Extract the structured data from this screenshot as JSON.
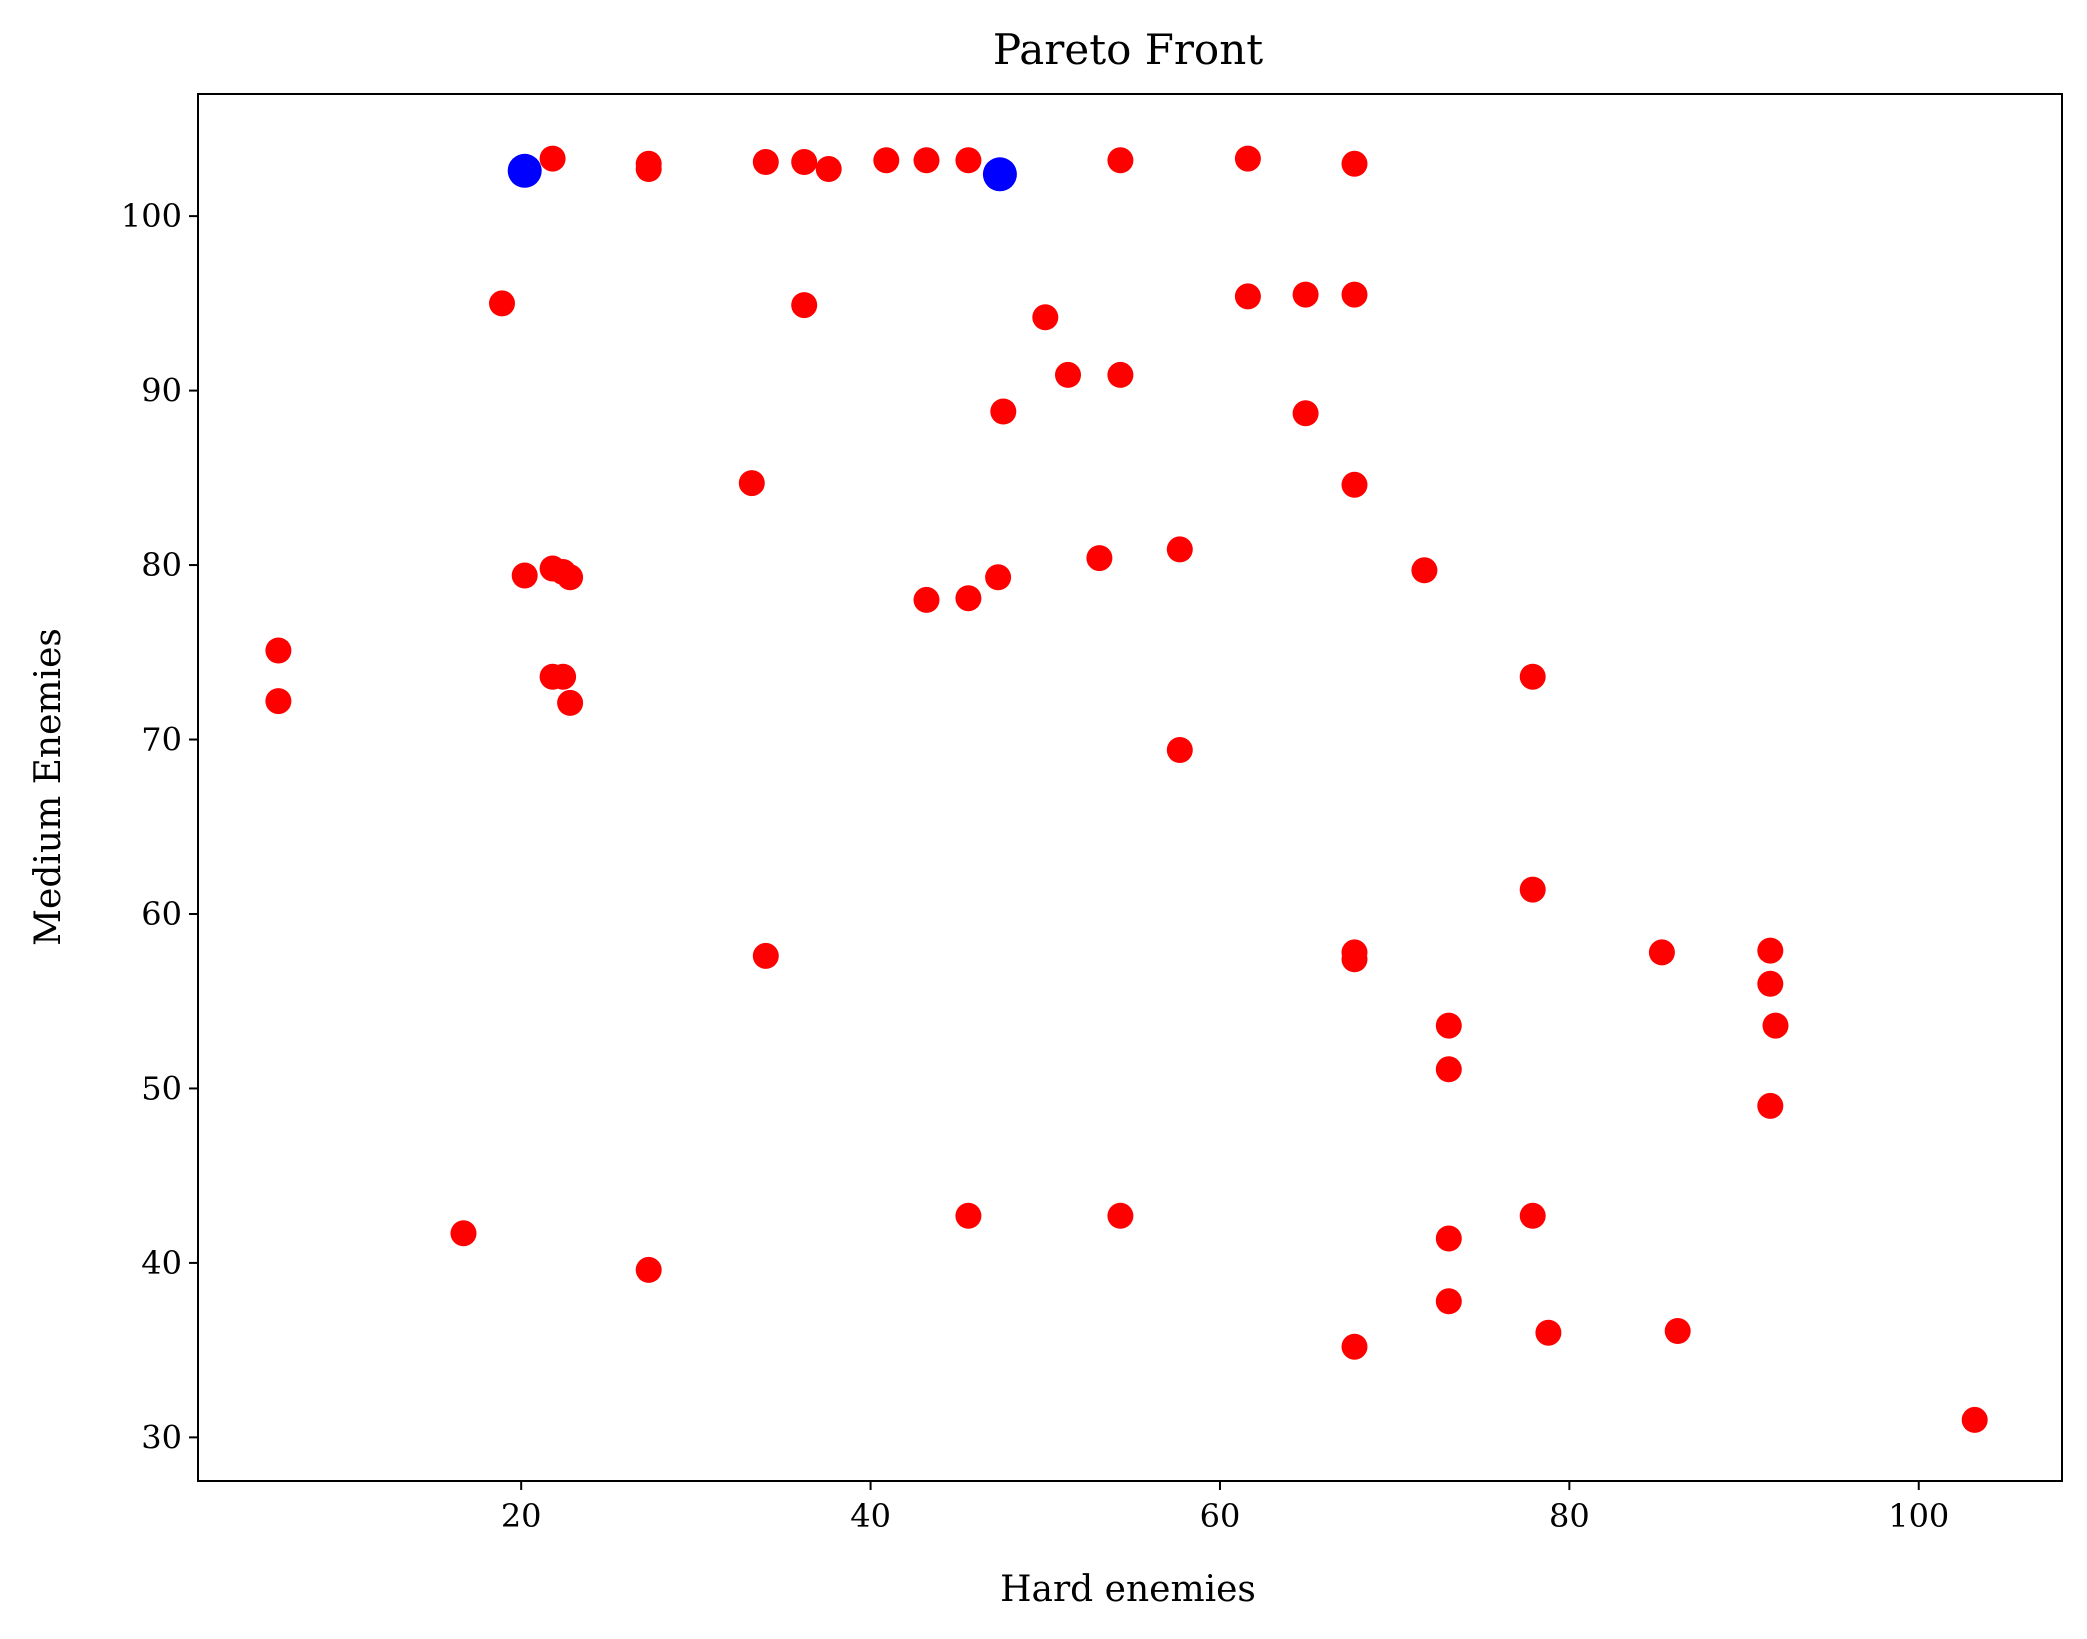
{
  "chart_data": {
    "type": "scatter",
    "title": "Pareto Front",
    "xlabel": "Hard enemies",
    "ylabel": "Medium Enemies",
    "xlim": [
      1.5,
      108.2
    ],
    "ylim": [
      27.5,
      107.0
    ],
    "xticks": [
      20,
      40,
      60,
      80,
      100
    ],
    "yticks": [
      30,
      40,
      50,
      60,
      70,
      80,
      90,
      100
    ],
    "grid": false,
    "colors": {
      "dominated": "#ff0000",
      "pareto": "#0000ff"
    },
    "series": [
      {
        "color": "#ff0000",
        "points": [
          [
            21.8,
            103.3
          ],
          [
            27.3,
            103.0
          ],
          [
            27.3,
            102.7
          ],
          [
            34.0,
            103.1
          ],
          [
            36.2,
            103.1
          ],
          [
            37.6,
            102.7
          ],
          [
            40.9,
            103.2
          ],
          [
            43.2,
            103.2
          ],
          [
            45.6,
            103.2
          ],
          [
            54.3,
            103.2
          ],
          [
            61.6,
            103.3
          ],
          [
            67.7,
            103.0
          ],
          [
            18.9,
            95.0
          ],
          [
            36.2,
            94.9
          ],
          [
            50.0,
            94.2
          ],
          [
            61.6,
            95.4
          ],
          [
            64.9,
            95.5
          ],
          [
            67.7,
            95.5
          ],
          [
            51.3,
            90.9
          ],
          [
            54.3,
            90.9
          ],
          [
            47.6,
            88.8
          ],
          [
            64.9,
            88.7
          ],
          [
            33.2,
            84.7
          ],
          [
            67.7,
            84.6
          ],
          [
            20.2,
            79.4
          ],
          [
            21.8,
            79.8
          ],
          [
            22.4,
            79.6
          ],
          [
            22.8,
            79.3
          ],
          [
            43.2,
            78.0
          ],
          [
            45.6,
            78.1
          ],
          [
            47.3,
            79.3
          ],
          [
            53.1,
            80.4
          ],
          [
            57.7,
            80.9
          ],
          [
            71.7,
            79.7
          ],
          [
            6.1,
            75.1
          ],
          [
            6.1,
            72.2
          ],
          [
            21.8,
            73.6
          ],
          [
            22.4,
            73.6
          ],
          [
            22.8,
            72.1
          ],
          [
            77.9,
            73.6
          ],
          [
            57.7,
            69.4
          ],
          [
            77.9,
            61.4
          ],
          [
            34.0,
            57.6
          ],
          [
            67.7,
            57.8
          ],
          [
            67.7,
            57.4
          ],
          [
            85.3,
            57.8
          ],
          [
            91.5,
            57.9
          ],
          [
            91.5,
            56.0
          ],
          [
            91.8,
            53.6
          ],
          [
            73.1,
            53.6
          ],
          [
            73.1,
            51.1
          ],
          [
            91.5,
            49.0
          ],
          [
            16.7,
            41.7
          ],
          [
            27.3,
            39.6
          ],
          [
            45.6,
            42.7
          ],
          [
            54.3,
            42.7
          ],
          [
            77.9,
            42.7
          ],
          [
            73.1,
            41.4
          ],
          [
            73.1,
            37.8
          ],
          [
            78.8,
            36.0
          ],
          [
            86.2,
            36.1
          ],
          [
            67.7,
            35.2
          ],
          [
            103.2,
            31.0
          ]
        ]
      },
      {
        "color": "#0000ff",
        "points": [
          [
            20.2,
            102.6
          ],
          [
            47.4,
            102.4
          ]
        ]
      }
    ]
  }
}
